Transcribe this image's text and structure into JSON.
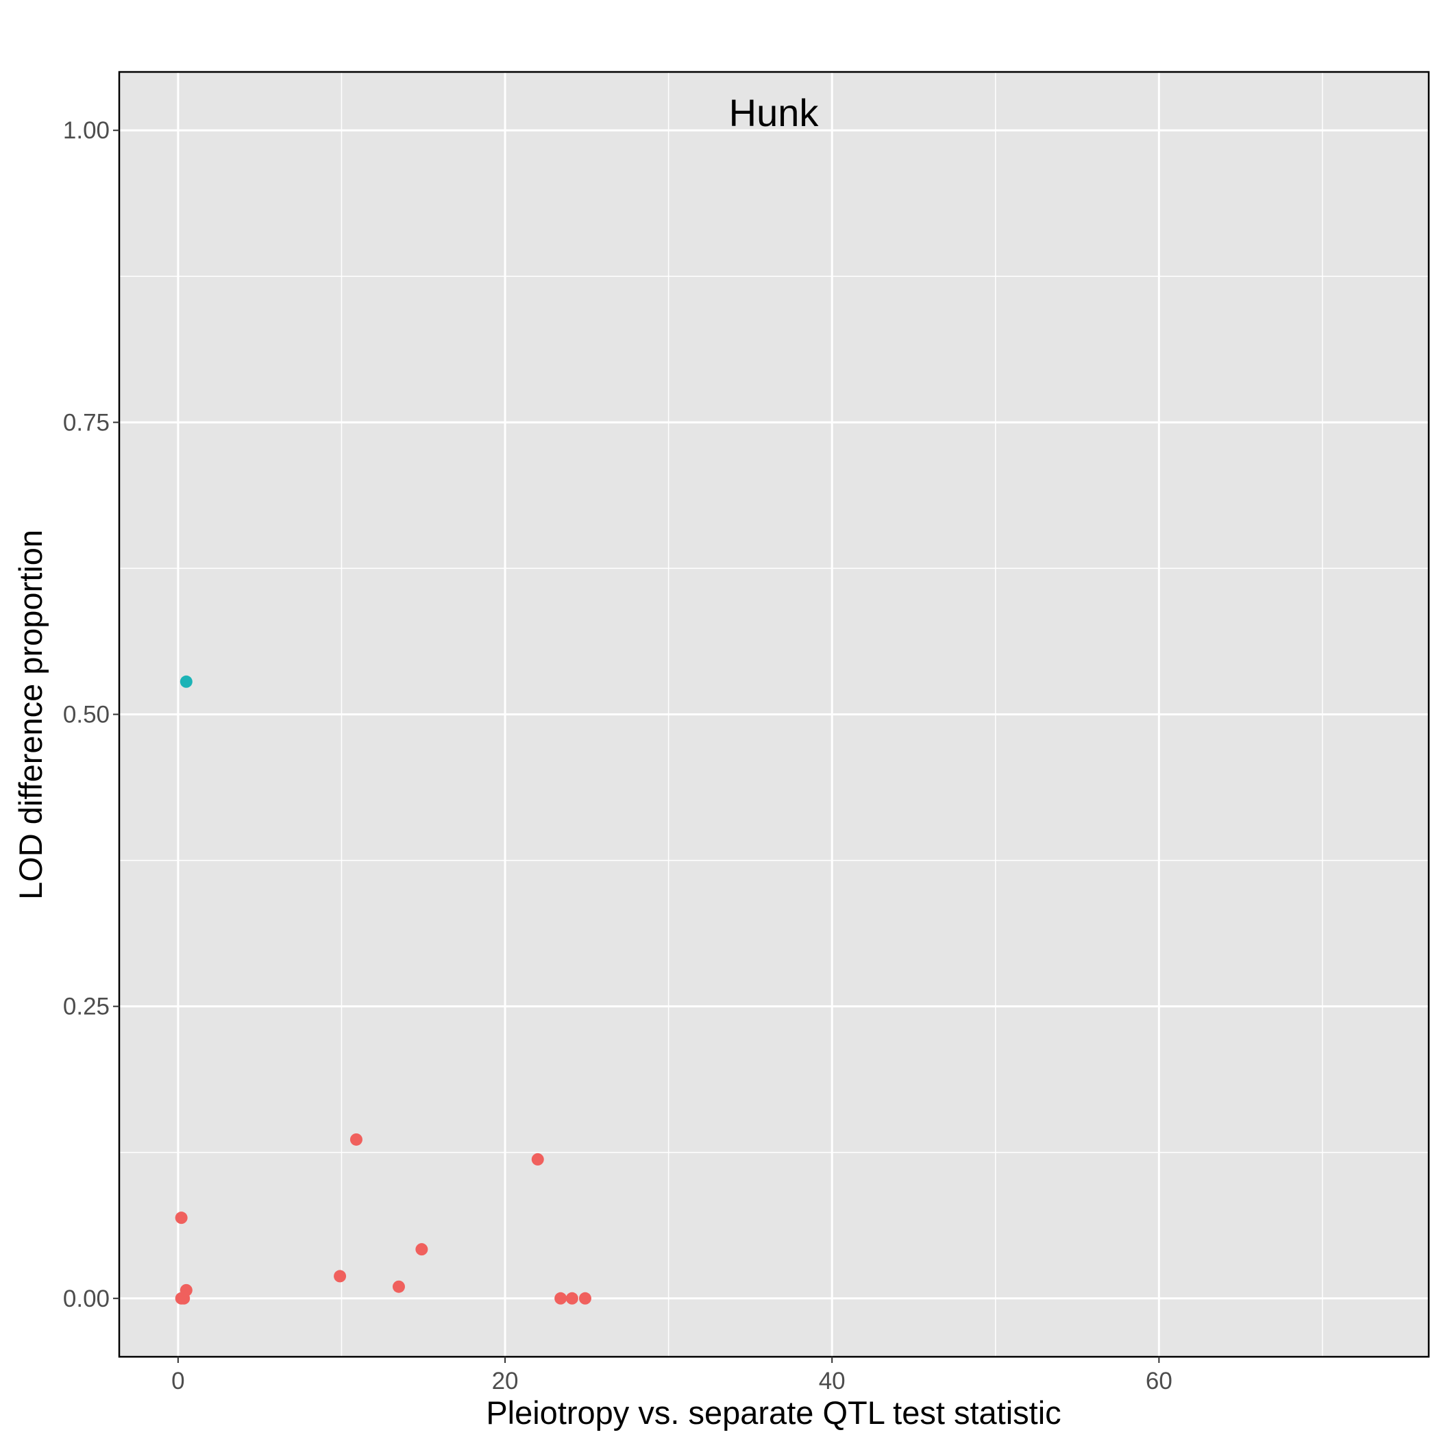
{
  "chart_data": {
    "type": "scatter",
    "title": "Hunk",
    "xlabel": "Pleiotropy vs. separate QTL test statistic",
    "ylabel": "LOD difference proportion",
    "xlim": [
      -3.6,
      76.5
    ],
    "ylim": [
      -0.05,
      1.05
    ],
    "x_ticks": [
      0,
      20,
      40,
      60
    ],
    "x_tick_labels": [
      "0",
      "20",
      "40",
      "60"
    ],
    "x_minor_ticks": [
      10,
      30,
      50,
      70
    ],
    "y_ticks": [
      0,
      0.25,
      0.5,
      0.75,
      1
    ],
    "y_tick_labels": [
      "0.00",
      "0.25",
      "0.50",
      "0.75",
      "1.00"
    ],
    "y_minor_ticks": [
      0.125,
      0.375,
      0.625,
      0.875
    ],
    "grid": true,
    "legend": "none",
    "colors": {
      "panel_bg": "#e5e5e5",
      "grid": "#ffffff",
      "red_group": "#f0605d",
      "teal_group": "#1cb3b6"
    },
    "series": [
      {
        "color": "#f0605d",
        "points": [
          {
            "x": 0.2,
            "y": 0.0
          },
          {
            "x": 0.35,
            "y": 0.0
          },
          {
            "x": 0.5,
            "y": 0.007
          },
          {
            "x": 0.2,
            "y": 0.069
          },
          {
            "x": 9.9,
            "y": 0.019
          },
          {
            "x": 10.9,
            "y": 0.136
          },
          {
            "x": 13.5,
            "y": 0.01
          },
          {
            "x": 14.9,
            "y": 0.042
          },
          {
            "x": 22.0,
            "y": 0.119
          },
          {
            "x": 23.4,
            "y": 0.0
          },
          {
            "x": 24.1,
            "y": 0.0
          },
          {
            "x": 24.9,
            "y": 0.0
          }
        ]
      },
      {
        "color": "#1cb3b6",
        "points": [
          {
            "x": 0.5,
            "y": 0.528
          }
        ]
      }
    ]
  }
}
